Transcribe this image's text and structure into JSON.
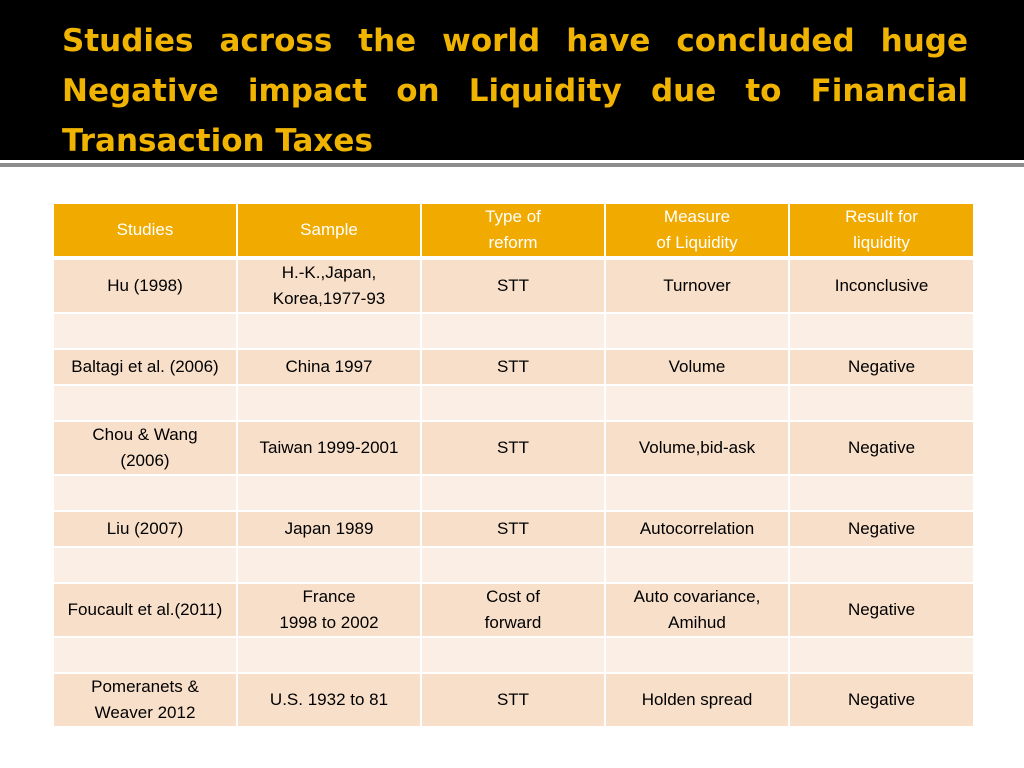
{
  "title": "Studies across the world have concluded huge Negative impact on Liquidity due to Financial Transaction Taxes",
  "table": {
    "headers": [
      "Studies",
      "Sample",
      "Type of\nreform",
      "Measure\nof Liquidity",
      "Result for\nliquidity"
    ],
    "rows": [
      [
        "Hu (1998)",
        "H.-K.,Japan,\nKorea,1977-93",
        "STT",
        "Turnover",
        "Inconclusive"
      ],
      [
        "",
        "",
        "",
        "",
        ""
      ],
      [
        "Baltagi et al. (2006)",
        "China 1997",
        "STT",
        "Volume",
        "Negative"
      ],
      [
        "",
        "",
        "",
        "",
        ""
      ],
      [
        "Chou & Wang\n(2006)",
        "Taiwan 1999-2001",
        "STT",
        "Volume,bid-ask",
        "Negative"
      ],
      [
        "",
        "",
        "",
        "",
        ""
      ],
      [
        "Liu (2007)",
        "Japan 1989",
        "STT",
        "Autocorrelation",
        "Negative"
      ],
      [
        "",
        "",
        "",
        "",
        ""
      ],
      [
        "Foucault et al.(2011)",
        "France\n1998 to 2002",
        "Cost of\nforward",
        "Auto covariance,\nAmihud",
        "Negative"
      ],
      [
        "",
        "",
        "",
        "",
        ""
      ],
      [
        "Pomeranets &\nWeaver 2012",
        "U.S. 1932 to 81",
        "STT",
        "Holden spread",
        "Negative"
      ]
    ]
  },
  "colors": {
    "title_bar": "#000000",
    "title_text": "#f0b400",
    "header_fill": "#f0aa00",
    "row_fill": "#f8dfc9",
    "spacer_fill": "#fbeee5"
  }
}
